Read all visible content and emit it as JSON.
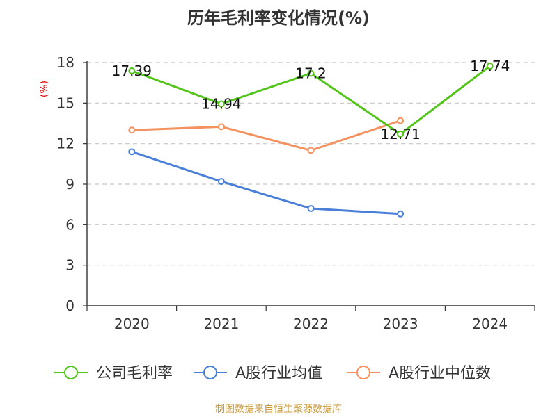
{
  "title": "历年毛利率变化情况(%)",
  "source": "制图数据来自恒生聚源数据库",
  "chart_data": {
    "type": "line",
    "title": "历年毛利率变化情况(%)",
    "ylabel": "(%)",
    "categories": [
      "2020",
      "2021",
      "2022",
      "2023",
      "2024"
    ],
    "ylim": [
      0,
      18
    ],
    "yticks": [
      0,
      3,
      6,
      9,
      12,
      15,
      18
    ],
    "grid": true,
    "legend": "bottom",
    "series": [
      {
        "name": "公司毛利率",
        "color": "#52c41a",
        "values": [
          17.39,
          14.94,
          17.2,
          12.71,
          17.74
        ],
        "labels": [
          "17.39",
          "14.94",
          "17.2",
          "12.71",
          "17.74"
        ]
      },
      {
        "name": "A股行业均值",
        "color": "#4a7fd9",
        "values": [
          11.4,
          9.2,
          7.2,
          6.8,
          null
        ]
      },
      {
        "name": "A股行业中位数",
        "color": "#f4915e",
        "values": [
          13.0,
          13.25,
          11.5,
          13.7,
          null
        ]
      }
    ]
  }
}
